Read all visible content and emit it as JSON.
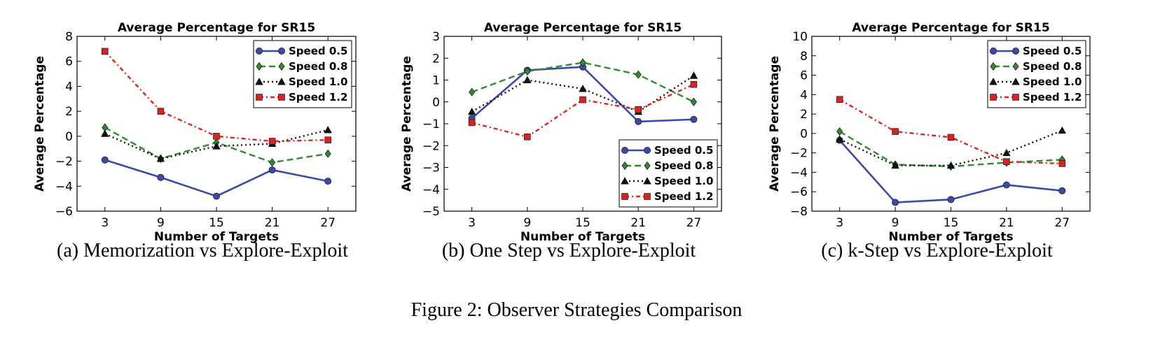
{
  "figure_caption": "Figure 2: Observer Strategies Comparison",
  "series_styles": [
    {
      "color": "#3b4aa8",
      "dash": "",
      "marker": "circle",
      "width": 2.6
    },
    {
      "color": "#2e8b2e",
      "dash": "9,5",
      "marker": "diamond",
      "width": 2.4
    },
    {
      "color": "#111111",
      "dash": "2,4",
      "marker": "triangle",
      "width": 2.4
    },
    {
      "color": "#e02020",
      "dash": "6,4,2,4",
      "marker": "square",
      "width": 2.4
    }
  ],
  "chart_data": [
    {
      "type": "line",
      "title": "Average Percentage for SR15",
      "xlabel": "Number of Targets",
      "ylabel": "Average Percentage",
      "caption": "(a) Memorization vs Explore-Exploit",
      "x": [
        3,
        9,
        15,
        21,
        27
      ],
      "xticks": [
        "3",
        "9",
        "15",
        "21",
        "27"
      ],
      "ylim": [
        -6,
        8
      ],
      "yticks": [
        "−6",
        "−4",
        "−2",
        "0",
        "2",
        "4",
        "6",
        "8"
      ],
      "legend_position": "top-right",
      "series": [
        {
          "name": "Speed 0.5",
          "values": [
            -1.9,
            -3.3,
            -4.8,
            -2.7,
            -3.6
          ]
        },
        {
          "name": "Speed 0.8",
          "values": [
            0.7,
            -1.8,
            -0.5,
            -2.1,
            -1.4
          ]
        },
        {
          "name": "Speed 1.0",
          "values": [
            0.2,
            -1.8,
            -0.8,
            -0.6,
            0.5
          ]
        },
        {
          "name": "Speed 1.2",
          "values": [
            6.8,
            2.0,
            0.0,
            -0.4,
            -0.3
          ]
        }
      ]
    },
    {
      "type": "line",
      "title": "Average Percentage for SR15",
      "xlabel": "Number of Targets",
      "ylabel": "Average Percentage",
      "caption": "(b) One Step vs Explore-Exploit",
      "x": [
        3,
        9,
        15,
        21,
        27
      ],
      "xticks": [
        "3",
        "9",
        "15",
        "21",
        "27"
      ],
      "ylim": [
        -5,
        3
      ],
      "yticks": [
        "−5",
        "−4",
        "−3",
        "−2",
        "−1",
        "0",
        "1",
        "2",
        "3"
      ],
      "legend_position": "bottom-right",
      "series": [
        {
          "name": "Speed 0.5",
          "values": [
            -0.75,
            1.45,
            1.6,
            -0.9,
            -0.8
          ]
        },
        {
          "name": "Speed 0.8",
          "values": [
            0.45,
            1.4,
            1.8,
            1.25,
            0.0
          ]
        },
        {
          "name": "Speed 1.0",
          "values": [
            -0.45,
            1.0,
            0.6,
            -0.45,
            1.2
          ]
        },
        {
          "name": "Speed 1.2",
          "values": [
            -0.95,
            -1.6,
            0.1,
            -0.35,
            0.8
          ]
        }
      ]
    },
    {
      "type": "line",
      "title": "Average Percentage for SR15",
      "xlabel": "Number of Targets",
      "ylabel": "Average Percentage",
      "caption": "(c) k-Step vs Explore-Exploit",
      "x": [
        3,
        9,
        15,
        21,
        27
      ],
      "xticks": [
        "3",
        "9",
        "15",
        "21",
        "27"
      ],
      "ylim": [
        -8,
        10
      ],
      "yticks": [
        "−8",
        "−6",
        "−4",
        "−2",
        "0",
        "2",
        "4",
        "6",
        "8",
        "10"
      ],
      "legend_position": "top-right",
      "series": [
        {
          "name": "Speed 0.5",
          "values": [
            -0.7,
            -7.1,
            -6.8,
            -5.3,
            -5.9
          ]
        },
        {
          "name": "Speed 0.8",
          "values": [
            0.2,
            -3.2,
            -3.4,
            -3.0,
            -2.7
          ]
        },
        {
          "name": "Speed 1.0",
          "values": [
            -0.6,
            -3.3,
            -3.3,
            -2.0,
            0.3
          ]
        },
        {
          "name": "Speed 1.2",
          "values": [
            3.5,
            0.2,
            -0.4,
            -2.9,
            -3.1
          ]
        }
      ]
    }
  ]
}
